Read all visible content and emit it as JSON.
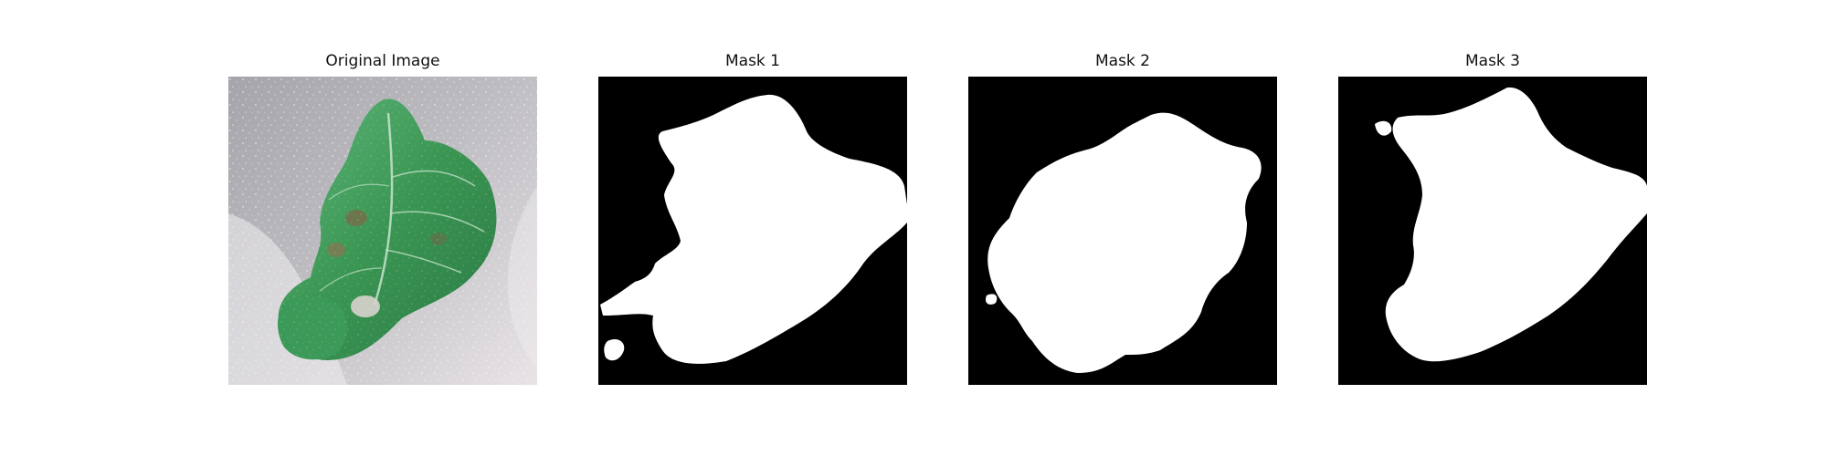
{
  "figure": {
    "panels": [
      {
        "title": "Original Image",
        "content": "leaf-photo"
      },
      {
        "title": "Mask 1",
        "content": "binary-mask"
      },
      {
        "title": "Mask 2",
        "content": "binary-mask"
      },
      {
        "title": "Mask 3",
        "content": "binary-mask"
      }
    ],
    "colors": {
      "mask_background": "#000000",
      "mask_foreground": "#ffffff",
      "leaf_green": "#3f9a57",
      "photo_background": "#b7b6bb"
    }
  }
}
